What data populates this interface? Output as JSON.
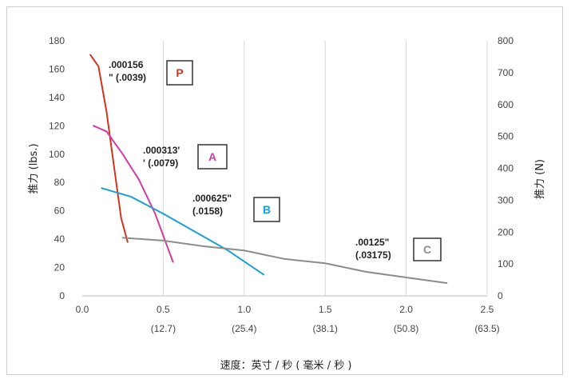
{
  "chart_data": {
    "type": "line",
    "xlabel": "速度：英寸 / 秒 ( 毫米 / 秒 )",
    "ylabel_left": "推力 (lbs.)",
    "ylabel_right": "推力 (N)",
    "xlim": [
      0,
      2.5
    ],
    "ylim_left": [
      0,
      180
    ],
    "ylim_right": [
      0,
      800
    ],
    "x_ticks": [
      "0.0",
      "0.5",
      "1.0",
      "1.5",
      "2.0",
      "2.5"
    ],
    "x_ticks_metric": [
      "(12.7)",
      "(25.4)",
      "(38.1)",
      "(50.8)",
      "(63.5)"
    ],
    "y_ticks_left": [
      "0",
      "20",
      "40",
      "60",
      "80",
      "100",
      "120",
      "140",
      "160",
      "180"
    ],
    "y_ticks_right": [
      "0",
      "100",
      "200",
      "300",
      "400",
      "500",
      "600",
      "700",
      "800"
    ],
    "grid": "vertical",
    "series": [
      {
        "key": "P",
        "color": "#d2341f",
        "x": [
          0.05,
          0.1,
          0.15,
          0.2,
          0.24,
          0.28
        ],
        "y": [
          170,
          162,
          130,
          88,
          55,
          38
        ],
        "label_lines": [
          ".000156",
          "\" (.0039)"
        ],
        "badge": "P"
      },
      {
        "key": "A",
        "color": "#d63a9e",
        "x": [
          0.07,
          0.15,
          0.25,
          0.35,
          0.45,
          0.56
        ],
        "y": [
          120,
          116,
          100,
          82,
          58,
          24
        ],
        "label_lines": [
          ".000313'",
          "' (.0079)"
        ],
        "badge": "A"
      },
      {
        "key": "B",
        "color": "#1aa0d6",
        "x": [
          0.12,
          0.3,
          0.5,
          0.7,
          0.9,
          1.12
        ],
        "y": [
          76,
          70,
          58,
          45,
          32,
          15
        ],
        "label_lines": [
          ".000625\"",
          "(.0158)"
        ],
        "badge": "B"
      },
      {
        "key": "C",
        "color": "#8c8c8c",
        "x": [
          0.25,
          0.5,
          0.75,
          1.0,
          1.25,
          1.5,
          1.75,
          2.0,
          2.25
        ],
        "y": [
          41,
          39,
          35,
          32,
          26,
          23,
          17,
          13,
          9
        ],
        "label_lines": [
          ".00125\"",
          "(.03175)"
        ],
        "badge": "C"
      }
    ]
  }
}
